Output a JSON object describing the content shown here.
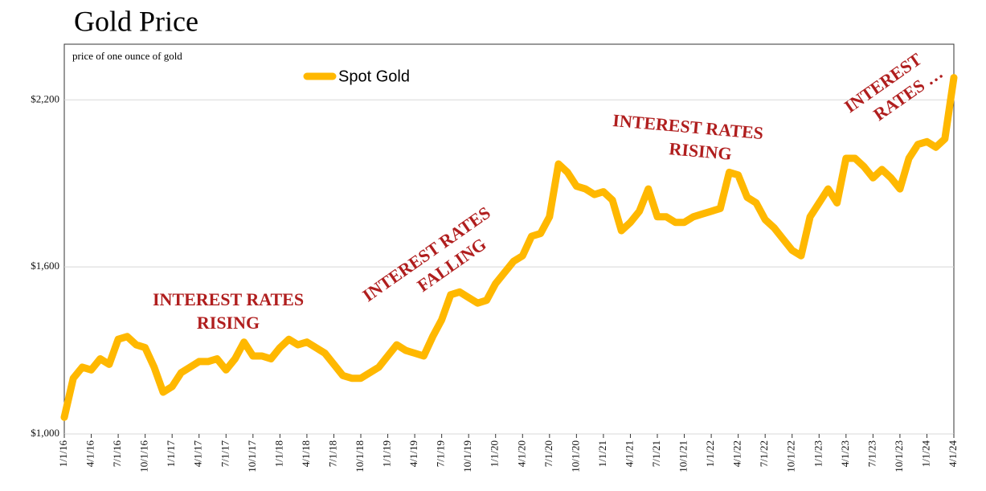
{
  "chart_data": {
    "type": "line",
    "title": "Gold Price",
    "subtitle": "price of one ounce of gold",
    "categories": [
      "1/1/16",
      null,
      null,
      "4/1/16",
      null,
      null,
      "7/1/16",
      null,
      null,
      "10/1/16",
      null,
      null,
      "1/1/17",
      null,
      null,
      "4/1/17",
      null,
      null,
      "7/1/17",
      null,
      null,
      "10/1/17",
      null,
      null,
      "1/1/18",
      null,
      null,
      "4/1/18",
      null,
      null,
      "7/1/18",
      null,
      null,
      "10/1/18",
      null,
      null,
      "1/1/19",
      null,
      null,
      "4/1/19",
      null,
      null,
      "7/1/19",
      null,
      null,
      "10/1/19",
      null,
      null,
      "1/1/20",
      null,
      null,
      "4/1/20",
      null,
      null,
      "7/1/20",
      null,
      null,
      "10/1/20",
      null,
      null,
      "1/1/21",
      null,
      null,
      "4/1/21",
      null,
      null,
      "7/1/21",
      null,
      null,
      "10/1/21",
      null,
      null,
      "1/1/22",
      null,
      null,
      "4/1/22",
      null,
      null,
      "7/1/22",
      null,
      null,
      "10/1/22",
      null,
      null,
      "1/1/23",
      null,
      null,
      "4/1/23",
      null,
      null,
      "7/1/23",
      null,
      null,
      "10/1/23",
      null,
      null,
      "1/1/24",
      null,
      null,
      "4/1/24"
    ],
    "series": [
      {
        "name": "Spot Gold",
        "color": "#FFB800",
        "values": [
          1060,
          1200,
          1240,
          1230,
          1270,
          1250,
          1340,
          1350,
          1320,
          1310,
          1240,
          1150,
          1170,
          1220,
          1240,
          1260,
          1260,
          1270,
          1230,
          1270,
          1330,
          1280,
          1280,
          1270,
          1310,
          1340,
          1320,
          1330,
          1310,
          1290,
          1250,
          1210,
          1200,
          1200,
          1220,
          1240,
          1280,
          1320,
          1300,
          1290,
          1280,
          1350,
          1410,
          1500,
          1510,
          1490,
          1470,
          1480,
          1540,
          1580,
          1620,
          1640,
          1710,
          1720,
          1780,
          1970,
          1940,
          1890,
          1880,
          1860,
          1870,
          1840,
          1730,
          1760,
          1800,
          1880,
          1780,
          1780,
          1760,
          1760,
          1780,
          1790,
          1800,
          1810,
          1940,
          1930,
          1850,
          1830,
          1770,
          1740,
          1700,
          1660,
          1640,
          1780,
          1830,
          1880,
          1830,
          1990,
          1990,
          1960,
          1920,
          1950,
          1920,
          1880,
          1990,
          2040,
          2050,
          2030,
          2060,
          2280
        ]
      }
    ],
    "ylim": [
      1000,
      2400
    ],
    "yticks": [
      {
        "value": 1000,
        "label": "$1,000"
      },
      {
        "value": 1600,
        "label": "$1,600"
      },
      {
        "value": 2200,
        "label": "$2,200"
      }
    ],
    "grid": true,
    "annotations": [
      {
        "lines": [
          "INTEREST RATES",
          "RISING"
        ]
      },
      {
        "lines": [
          "INTEREST RATES",
          "FALLING"
        ]
      },
      {
        "lines": [
          "INTEREST RATES",
          "RISING"
        ]
      },
      {
        "lines": [
          "INTEREST",
          "RATES …"
        ]
      }
    ]
  }
}
